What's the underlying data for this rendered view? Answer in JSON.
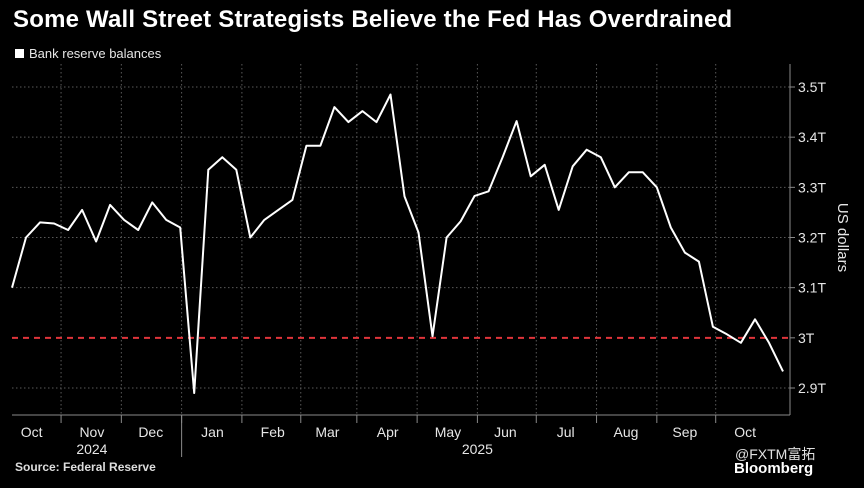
{
  "title": "Some Wall Street Strategists Believe the Fed Has Overdrained",
  "legend": {
    "label": "Bank reserve balances",
    "color": "#ffffff"
  },
  "source": "Source: Federal Reserve",
  "watermark": "@FXTM富拓",
  "brand": "Bloomberg",
  "chart_data": {
    "type": "line",
    "ylabel": "US dollars",
    "ylim": [
      2.87,
      3.53
    ],
    "yticks": [
      {
        "value": 3.5,
        "label": "3.5T"
      },
      {
        "value": 3.4,
        "label": "3.4T"
      },
      {
        "value": 3.3,
        "label": "3.3T"
      },
      {
        "value": 3.2,
        "label": "3.2T"
      },
      {
        "value": 3.1,
        "label": "3.1T"
      },
      {
        "value": 3.0,
        "label": "3T"
      },
      {
        "value": 2.9,
        "label": "2.9T"
      }
    ],
    "xlim": [
      0,
      55.5
    ],
    "month_labels": [
      {
        "x": 1.4,
        "label": "Oct"
      },
      {
        "x": 5.7,
        "label": "Nov"
      },
      {
        "x": 9.9,
        "label": "Dec"
      },
      {
        "x": 14.3,
        "label": "Jan"
      },
      {
        "x": 18.6,
        "label": "Feb"
      },
      {
        "x": 22.5,
        "label": "Mar"
      },
      {
        "x": 26.8,
        "label": "Apr"
      },
      {
        "x": 31.1,
        "label": "May"
      },
      {
        "x": 35.2,
        "label": "Jun"
      },
      {
        "x": 39.5,
        "label": "Jul"
      },
      {
        "x": 43.8,
        "label": "Aug"
      },
      {
        "x": 48.0,
        "label": "Sep"
      },
      {
        "x": 52.3,
        "label": "Oct"
      }
    ],
    "month_boundaries": [
      3.5,
      7.8,
      12.1,
      16.4,
      20.6,
      24.6,
      28.9,
      33.2,
      37.4,
      41.7,
      46.0,
      50.2
    ],
    "year_labels": [
      {
        "x": 5.7,
        "label": "2024"
      },
      {
        "x": 33.2,
        "label": "2025"
      }
    ],
    "year_boundaries": [
      12.1
    ],
    "reference_line": {
      "value": 3.0,
      "color": "#e0353b",
      "style": "dashed"
    },
    "series": [
      {
        "name": "Bank reserve balances",
        "color": "#ffffff",
        "points": [
          [
            0,
            3.1
          ],
          [
            1,
            3.2
          ],
          [
            2,
            3.23
          ],
          [
            3,
            3.228
          ],
          [
            4,
            3.215
          ],
          [
            5,
            3.255
          ],
          [
            6,
            3.192
          ],
          [
            7,
            3.265
          ],
          [
            8,
            3.235
          ],
          [
            9,
            3.215
          ],
          [
            10,
            3.27
          ],
          [
            11,
            3.235
          ],
          [
            12,
            3.22
          ],
          [
            13,
            2.89
          ],
          [
            14,
            3.335
          ],
          [
            15,
            3.36
          ],
          [
            16,
            3.335
          ],
          [
            17,
            3.2
          ],
          [
            18,
            3.235
          ],
          [
            19,
            3.255
          ],
          [
            20,
            3.275
          ],
          [
            21,
            3.383
          ],
          [
            22,
            3.383
          ],
          [
            23,
            3.46
          ],
          [
            24,
            3.43
          ],
          [
            25,
            3.452
          ],
          [
            26,
            3.43
          ],
          [
            27,
            3.485
          ],
          [
            28,
            3.282
          ],
          [
            29,
            3.21
          ],
          [
            30,
            3.003
          ],
          [
            31,
            3.2
          ],
          [
            32,
            3.232
          ],
          [
            33,
            3.283
          ],
          [
            34,
            3.292
          ],
          [
            35,
            3.36
          ],
          [
            36,
            3.432
          ],
          [
            37,
            3.322
          ],
          [
            38,
            3.345
          ],
          [
            39,
            3.255
          ],
          [
            40,
            3.342
          ],
          [
            41,
            3.375
          ],
          [
            42,
            3.36
          ],
          [
            43,
            3.3
          ],
          [
            44,
            3.33
          ],
          [
            45,
            3.33
          ],
          [
            46,
            3.3
          ],
          [
            47,
            3.22
          ],
          [
            48,
            3.17
          ],
          [
            49,
            3.152
          ],
          [
            50,
            3.022
          ],
          [
            51,
            3.007
          ],
          [
            52,
            2.99
          ],
          [
            53,
            3.037
          ],
          [
            54,
            2.99
          ],
          [
            55,
            2.933
          ]
        ]
      }
    ]
  }
}
